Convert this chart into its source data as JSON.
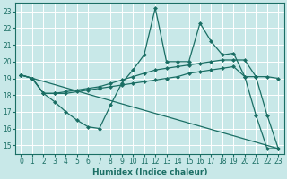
{
  "xlabel": "Humidex (Indice chaleur)",
  "xlim": [
    -0.5,
    23.5
  ],
  "ylim": [
    14.5,
    23.5
  ],
  "xticks": [
    0,
    1,
    2,
    3,
    4,
    5,
    6,
    7,
    8,
    9,
    10,
    11,
    12,
    13,
    14,
    15,
    16,
    17,
    18,
    19,
    20,
    21,
    22,
    23
  ],
  "yticks": [
    15,
    16,
    17,
    18,
    19,
    20,
    21,
    22,
    23
  ],
  "bg_color": "#c8e8e8",
  "grid_color": "#b0d8d8",
  "line_color": "#1a6e64",
  "line1_x": [
    0,
    1,
    2,
    3,
    4,
    5,
    6,
    7,
    8,
    9,
    10,
    11,
    12,
    13,
    14,
    15,
    16,
    17,
    18,
    19,
    20,
    21,
    22,
    23
  ],
  "line1_y": [
    19.2,
    19.0,
    18.1,
    17.6,
    17.0,
    16.5,
    16.1,
    16.0,
    17.4,
    18.7,
    19.5,
    20.4,
    23.2,
    20.0,
    20.0,
    20.0,
    22.3,
    21.2,
    20.4,
    20.5,
    19.1,
    16.8,
    14.8,
    14.8
  ],
  "line2_x": [
    0,
    1,
    2,
    3,
    4,
    5,
    6,
    7,
    8,
    9,
    10,
    11,
    12,
    13,
    14,
    15,
    16,
    17,
    18,
    19,
    20,
    21,
    22,
    23
  ],
  "line2_y": [
    19.2,
    19.0,
    18.1,
    18.1,
    18.2,
    18.3,
    18.4,
    18.5,
    18.7,
    18.9,
    19.1,
    19.3,
    19.5,
    19.6,
    19.7,
    19.8,
    19.9,
    20.0,
    20.1,
    20.1,
    20.1,
    19.1,
    16.8,
    14.8
  ],
  "line3_x": [
    0,
    1,
    2,
    3,
    4,
    5,
    6,
    7,
    8,
    9,
    10,
    11,
    12,
    13,
    14,
    15,
    16,
    17,
    18,
    19,
    20,
    21,
    22,
    23
  ],
  "line3_y": [
    19.2,
    19.0,
    18.1,
    18.1,
    18.1,
    18.2,
    18.3,
    18.4,
    18.5,
    18.6,
    18.7,
    18.8,
    18.9,
    19.0,
    19.1,
    19.3,
    19.4,
    19.5,
    19.6,
    19.7,
    19.1,
    19.1,
    19.1,
    19.0
  ],
  "line4_x": [
    0,
    23
  ],
  "line4_y": [
    19.2,
    14.8
  ],
  "markersize": 2.5,
  "lw": 0.9
}
